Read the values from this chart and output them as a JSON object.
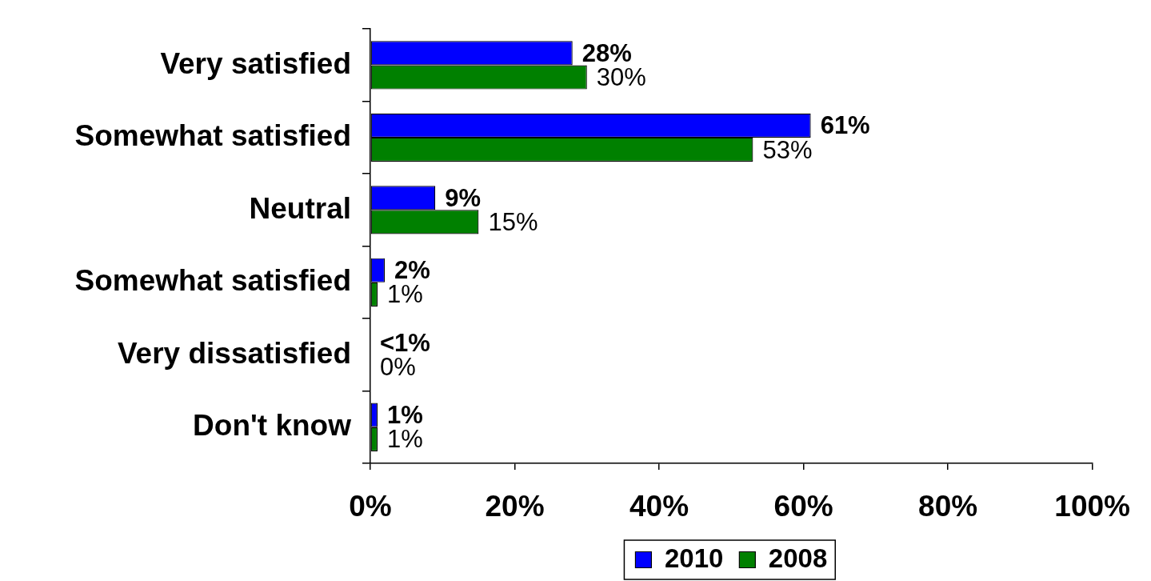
{
  "chart_data": {
    "type": "bar",
    "orientation": "horizontal",
    "categories": [
      "Very satisfied",
      "Somewhat satisfied",
      "Neutral",
      "Somewhat satisfied",
      "Very dissatisfied",
      "Don't know"
    ],
    "series": [
      {
        "name": "2010",
        "color": "#0000ff",
        "values": [
          28,
          61,
          9,
          2,
          0,
          1
        ],
        "value_labels": [
          "28%",
          "61%",
          "9%",
          "2%",
          "<1%",
          "1%"
        ]
      },
      {
        "name": "2008",
        "color": "#008000",
        "values": [
          30,
          53,
          15,
          1,
          0,
          1
        ],
        "value_labels": [
          "30%",
          "53%",
          "15%",
          "1%",
          "0%",
          "1%"
        ]
      }
    ],
    "xlim": [
      0,
      100
    ],
    "xticks": [
      {
        "value": 0,
        "label": "0%"
      },
      {
        "value": 20,
        "label": "20%"
      },
      {
        "value": 40,
        "label": "40%"
      },
      {
        "value": 60,
        "label": "60%"
      },
      {
        "value": 80,
        "label": "80%"
      },
      {
        "value": 100,
        "label": "100%"
      }
    ],
    "grid": false,
    "legend": "bottom"
  }
}
